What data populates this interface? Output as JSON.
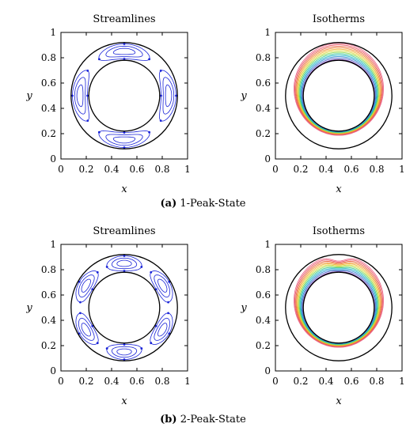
{
  "figure": {
    "panels": [
      {
        "caption_label": "(a)",
        "caption_text": "1-Peak-State",
        "plots": [
          {
            "title": "Streamlines",
            "kind": "streamlines"
          },
          {
            "title": "Isotherms",
            "kind": "isotherms"
          }
        ]
      },
      {
        "caption_label": "(b)",
        "caption_text": "2-Peak-State",
        "plots": [
          {
            "title": "Streamlines",
            "kind": "streamlines"
          },
          {
            "title": "Isotherms",
            "kind": "isotherms"
          }
        ]
      }
    ],
    "xlabel": "x",
    "ylabel": "y",
    "xticks": [
      "0",
      "0.2",
      "0.4",
      "0.6",
      "0.8",
      "1"
    ],
    "yticks": [
      "0",
      "0.2",
      "0.4",
      "0.6",
      "0.8",
      "1"
    ]
  },
  "chart_data": [
    {
      "type": "other",
      "title": "Streamlines",
      "panel": "1-Peak-State",
      "xlabel": "x",
      "ylabel": "y",
      "xlim": [
        0,
        1
      ],
      "ylim": [
        0,
        1
      ],
      "center": [
        0.5,
        0.5
      ],
      "outer_radius": 0.42,
      "inner_radius": 0.28,
      "cells": 4
    },
    {
      "type": "other",
      "title": "Isotherms",
      "panel": "1-Peak-State",
      "xlabel": "x",
      "ylabel": "y",
      "xlim": [
        0,
        1
      ],
      "ylim": [
        0,
        1
      ],
      "center": [
        0.5,
        0.5
      ],
      "outer_radius": 0.42,
      "inner_radius": 0.28,
      "plumes": 1
    },
    {
      "type": "other",
      "title": "Streamlines",
      "panel": "2-Peak-State",
      "xlabel": "x",
      "ylabel": "y",
      "xlim": [
        0,
        1
      ],
      "ylim": [
        0,
        1
      ],
      "center": [
        0.5,
        0.5
      ],
      "outer_radius": 0.42,
      "inner_radius": 0.28,
      "cells": 6
    },
    {
      "type": "other",
      "title": "Isotherms",
      "panel": "2-Peak-State",
      "xlabel": "x",
      "ylabel": "y",
      "xlim": [
        0,
        1
      ],
      "ylim": [
        0,
        1
      ],
      "center": [
        0.5,
        0.5
      ],
      "outer_radius": 0.42,
      "inner_radius": 0.28,
      "plumes": 2
    }
  ],
  "colors": {
    "streamline": "#1a24d8",
    "walls": "#000000",
    "isotherm_palette": [
      "#6a2fa0",
      "#4a62c8",
      "#2e8fd0",
      "#22b5c8",
      "#3cc890",
      "#8ad84a",
      "#d8d838",
      "#f0b030",
      "#f08838",
      "#e86848",
      "#e85868",
      "#ec6a8a"
    ]
  }
}
